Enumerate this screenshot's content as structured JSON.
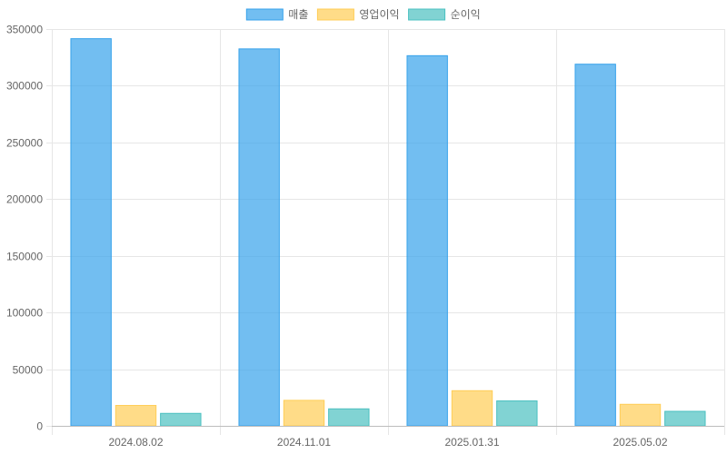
{
  "chart_data": {
    "type": "bar",
    "categories": [
      "2024.08.02",
      "2024.11.01",
      "2025.01.31",
      "2025.05.02"
    ],
    "series": [
      {
        "name": "매출",
        "values": [
          341500,
          332500,
          326500,
          319000
        ],
        "color": "#36A2EB"
      },
      {
        "name": "영업이익",
        "values": [
          18000,
          22500,
          31000,
          19000
        ],
        "color": "#FFCD56"
      },
      {
        "name": "순이익",
        "values": [
          11000,
          15000,
          22000,
          12800
        ],
        "color": "#4BC0C0"
      }
    ],
    "yticks": [
      "0",
      "50000",
      "100000",
      "150000",
      "200000",
      "250000",
      "300000",
      "350000"
    ],
    "ylim": [
      0,
      350000
    ],
    "legend_position": "top-center",
    "grid": true
  }
}
